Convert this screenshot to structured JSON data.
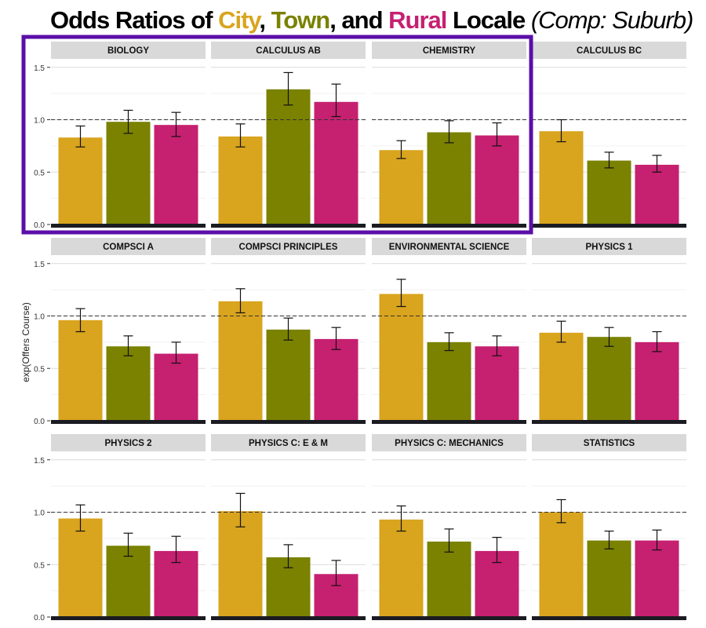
{
  "title": {
    "prefix": "Odds Ratios of ",
    "city": "City",
    "sep1": ", ",
    "town": "Town",
    "sep2": ", and ",
    "rural": "Rural",
    "suffix": " Locale ",
    "comparison": "(Comp: Suburb)"
  },
  "colors": {
    "city": "#d9a41e",
    "town": "#7a8200",
    "rural": "#c62070",
    "highlight": "#5b0fa8",
    "strip": "#d9d9d9"
  },
  "chart_data": {
    "type": "bar",
    "ylabel": "exp(Offers Course)",
    "ylim": [
      0,
      1.6
    ],
    "yticks": [
      "0.0",
      "0.5",
      "1.0",
      "1.5"
    ],
    "reference_line": 1.0,
    "grid": true,
    "categories": [
      "City",
      "Town",
      "Rural"
    ],
    "highlighted_panels": [
      "BIOLOGY",
      "CALCULUS AB",
      "CHEMISTRY"
    ],
    "panels": [
      {
        "label": "BIOLOGY",
        "values": [
          0.83,
          0.98,
          0.95
        ],
        "lower": [
          0.74,
          0.87,
          0.84
        ],
        "upper": [
          0.94,
          1.09,
          1.07
        ]
      },
      {
        "label": "CALCULUS AB",
        "values": [
          0.84,
          1.29,
          1.17
        ],
        "lower": [
          0.74,
          1.14,
          1.03
        ],
        "upper": [
          0.96,
          1.45,
          1.34
        ]
      },
      {
        "label": "CHEMISTRY",
        "values": [
          0.71,
          0.88,
          0.85
        ],
        "lower": [
          0.63,
          0.78,
          0.75
        ],
        "upper": [
          0.8,
          0.99,
          0.97
        ]
      },
      {
        "label": "CALCULUS BC",
        "values": [
          0.89,
          0.61,
          0.57
        ],
        "lower": [
          0.79,
          0.54,
          0.5
        ],
        "upper": [
          1.0,
          0.69,
          0.66
        ]
      },
      {
        "label": "COMPSCI A",
        "values": [
          0.96,
          0.71,
          0.64
        ],
        "lower": [
          0.85,
          0.62,
          0.55
        ],
        "upper": [
          1.07,
          0.81,
          0.75
        ]
      },
      {
        "label": "COMPSCI PRINCIPLES",
        "values": [
          1.14,
          0.87,
          0.78
        ],
        "lower": [
          1.03,
          0.77,
          0.68
        ],
        "upper": [
          1.26,
          0.98,
          0.89
        ]
      },
      {
        "label": "ENVIRONMENTAL SCIENCE",
        "values": [
          1.21,
          0.75,
          0.71
        ],
        "lower": [
          1.09,
          0.67,
          0.62
        ],
        "upper": [
          1.35,
          0.84,
          0.81
        ]
      },
      {
        "label": "PHYSICS 1",
        "values": [
          0.84,
          0.8,
          0.75
        ],
        "lower": [
          0.75,
          0.71,
          0.66
        ],
        "upper": [
          0.95,
          0.89,
          0.85
        ]
      },
      {
        "label": "PHYSICS 2",
        "values": [
          0.94,
          0.68,
          0.63
        ],
        "lower": [
          0.82,
          0.58,
          0.52
        ],
        "upper": [
          1.07,
          0.8,
          0.77
        ]
      },
      {
        "label": "PHYSICS C: E & M",
        "values": [
          1.01,
          0.57,
          0.41
        ],
        "lower": [
          0.86,
          0.47,
          0.3
        ],
        "upper": [
          1.18,
          0.69,
          0.54
        ]
      },
      {
        "label": "PHYSICS C: MECHANICS",
        "values": [
          0.93,
          0.72,
          0.63
        ],
        "lower": [
          0.82,
          0.62,
          0.52
        ],
        "upper": [
          1.06,
          0.84,
          0.76
        ]
      },
      {
        "label": "STATISTICS",
        "values": [
          1.0,
          0.73,
          0.73
        ],
        "lower": [
          0.9,
          0.65,
          0.64
        ],
        "upper": [
          1.12,
          0.82,
          0.83
        ]
      }
    ]
  }
}
